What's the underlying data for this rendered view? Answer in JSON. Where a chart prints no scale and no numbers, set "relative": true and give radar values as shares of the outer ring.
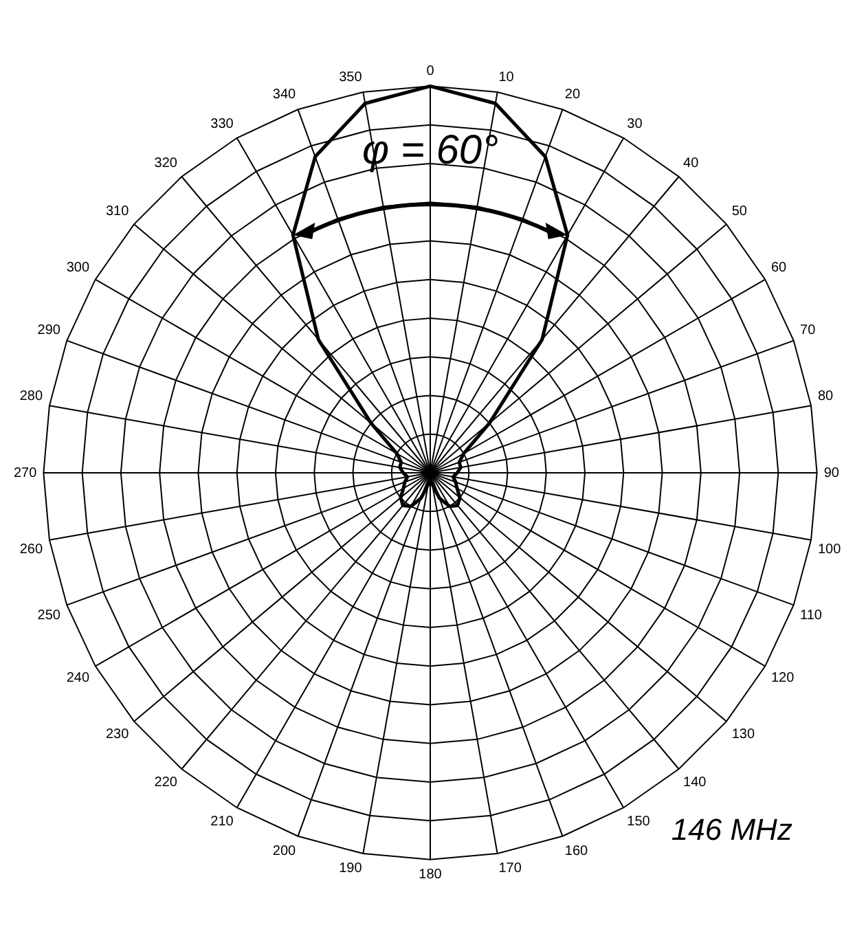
{
  "chart_data": {
    "type": "radar",
    "relative": true,
    "grid": true,
    "legend": false,
    "marker": "none",
    "line_style": "solid",
    "categories": [
      "0",
      "10",
      "20",
      "30",
      "40",
      "50",
      "60",
      "70",
      "80",
      "90",
      "100",
      "110",
      "120",
      "130",
      "140",
      "150",
      "160",
      "170",
      "180",
      "190",
      "200",
      "210",
      "220",
      "230",
      "240",
      "250",
      "260",
      "270",
      "280",
      "290",
      "300",
      "310",
      "320",
      "330",
      "340",
      "350"
    ],
    "series": [
      {
        "color": "#000000",
        "values": [
          1,
          0.97,
          0.87,
          0.71,
          0.45,
          0.2,
          0.1,
          0.08,
          0.08,
          0.07,
          0.06,
          0.07,
          0.08,
          0.1,
          0.11,
          0.1,
          0.07,
          0.03,
          0.02,
          0.03,
          0.07,
          0.1,
          0.11,
          0.1,
          0.08,
          0.07,
          0.06,
          0.07,
          0.08,
          0.08,
          0.1,
          0.2,
          0.45,
          0.71,
          0.87,
          0.97
        ]
      }
    ],
    "annotations": [
      "φ = 60°",
      "146 MHz"
    ]
  }
}
